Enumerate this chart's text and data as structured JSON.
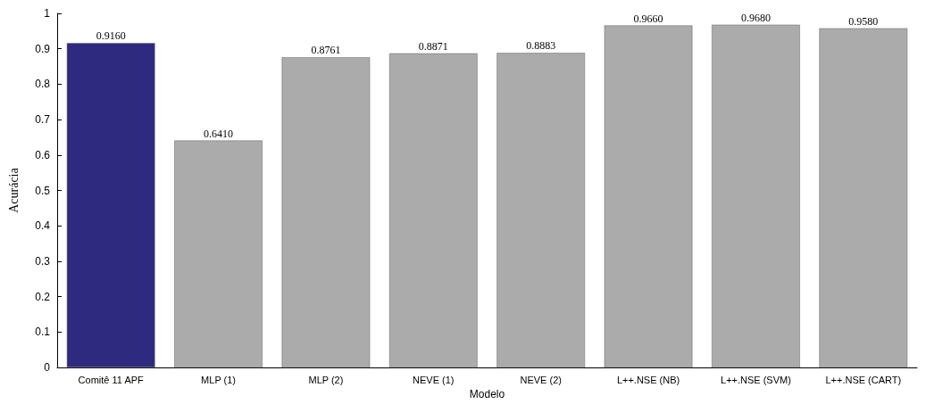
{
  "chart_data": {
    "type": "bar",
    "xlabel": "Modelo",
    "ylabel": "Acurácia",
    "categories": [
      "Comitê 11 APF",
      "MLP (1)",
      "MLP (2)",
      "NEVE (1)",
      "NEVE (2)",
      "L++.NSE (NB)",
      "L++.NSE (SVM)",
      "L++.NSE (CART)"
    ],
    "values": [
      0.916,
      0.641,
      0.8761,
      0.8871,
      0.8883,
      0.966,
      0.968,
      0.958
    ],
    "value_labels": [
      "0.9160",
      "0.6410",
      "0.8761",
      "0.8871",
      "0.8883",
      "0.9660",
      "0.9680",
      "0.9580"
    ],
    "colors": [
      "#2e2a80",
      "#ababab",
      "#ababab",
      "#ababab",
      "#ababab",
      "#ababab",
      "#ababab",
      "#ababab"
    ],
    "ylim": [
      0,
      1
    ],
    "yticks": [
      0,
      0.1,
      0.2,
      0.3,
      0.4,
      0.5,
      0.6,
      0.7,
      0.8,
      0.9,
      1
    ]
  }
}
